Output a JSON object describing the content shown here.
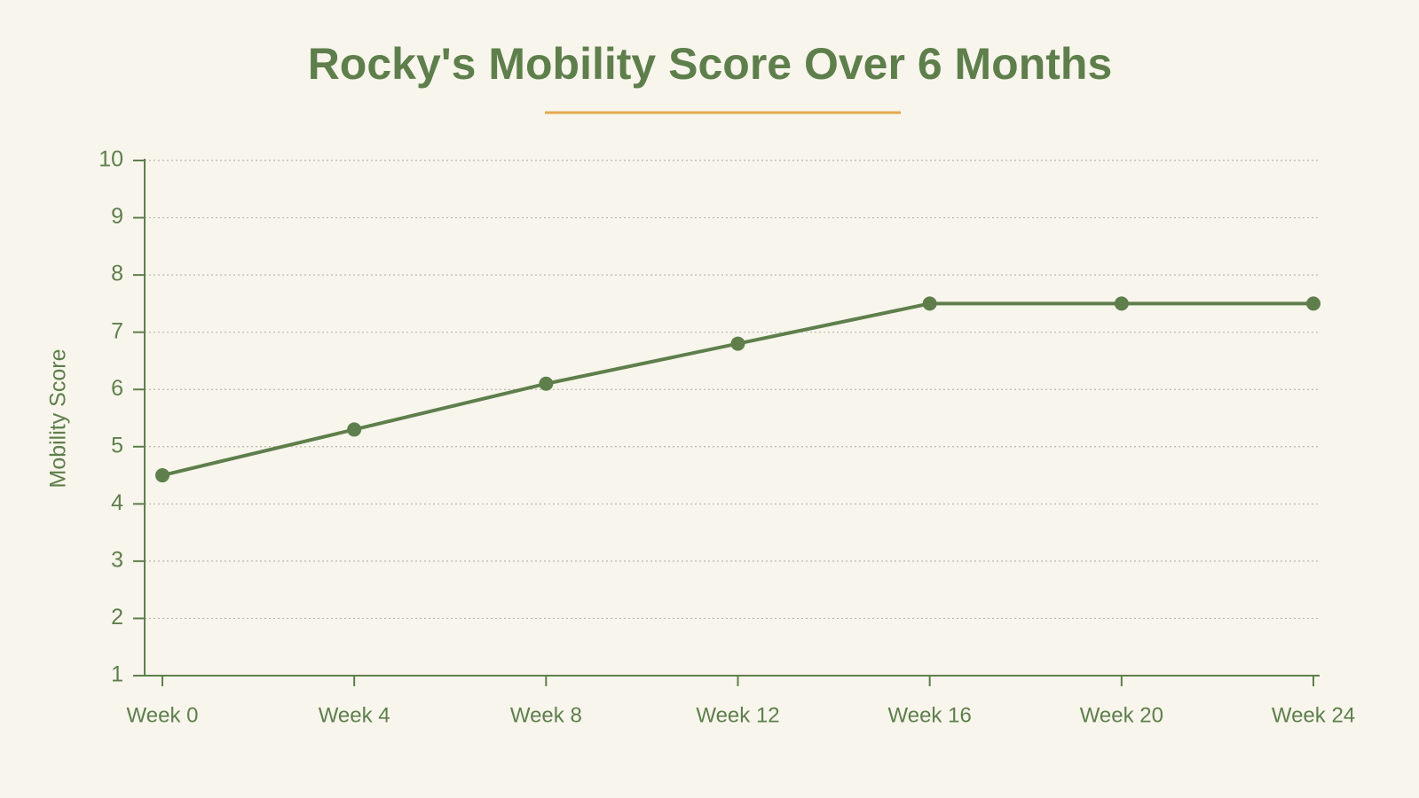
{
  "chart_data": {
    "type": "line",
    "title": "Rocky's Mobility Score Over 6 Months",
    "y_label": "Mobility Score",
    "categories": [
      "Week 0",
      "Week 4",
      "Week 8",
      "Week 12",
      "Week 16",
      "Week 20",
      "Week 24"
    ],
    "series": [
      {
        "name": "Mobility Score",
        "color": "#5e7f4c",
        "values": [
          4.5,
          5.3,
          6.1,
          6.8,
          7.5,
          7.5,
          7.5
        ]
      }
    ],
    "ylim": [
      1,
      10
    ],
    "yticks": [
      1,
      2,
      3,
      4,
      5,
      6,
      7,
      8,
      9,
      10
    ],
    "grid": true
  }
}
